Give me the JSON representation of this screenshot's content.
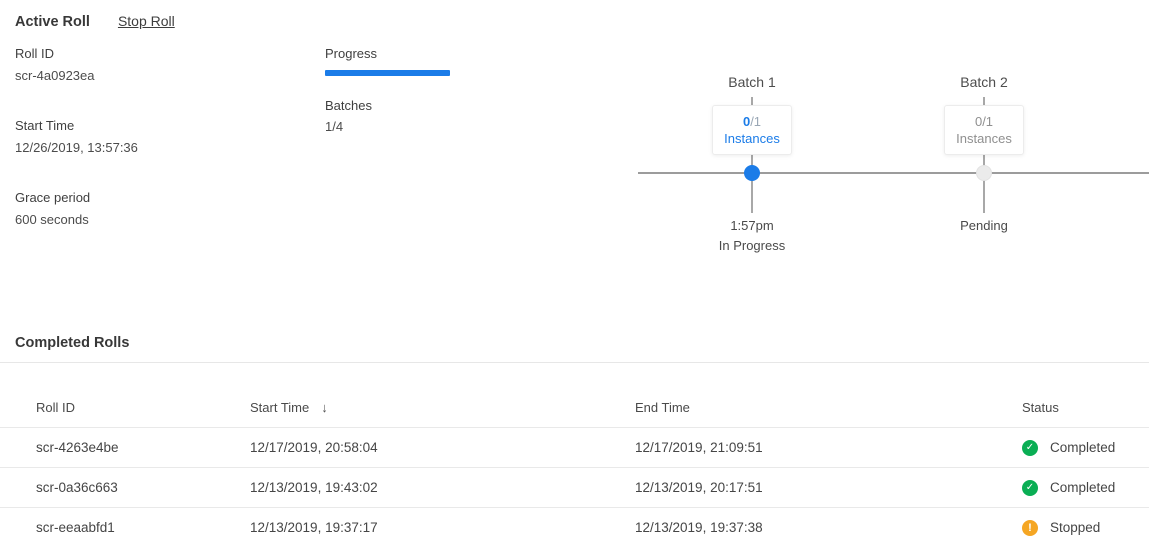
{
  "colors": {
    "accent_blue": "#1b7ce8",
    "success_green": "#0aae54",
    "warning_orange": "#f5a623",
    "line_gray": "#9c9c9c"
  },
  "active_roll": {
    "title": "Active Roll",
    "stop_roll_label": "Stop Roll",
    "details": [
      {
        "label": "Roll ID",
        "value": "scr-4a0923ea"
      },
      {
        "label": "Start Time",
        "value": "12/26/2019, 13:57:36"
      },
      {
        "label": "Grace period",
        "value": "600 seconds"
      }
    ],
    "progress_label": "Progress",
    "progress_percent": 25,
    "batches_label": "Batches",
    "batches_value": "1/4"
  },
  "timeline": {
    "batches": [
      {
        "name": "Batch 1",
        "instances_done": "0",
        "instances_total": "/1",
        "instances_label": "Instances",
        "time": "1:57pm",
        "status": "In Progress",
        "state": "in-progress"
      },
      {
        "name": "Batch 2",
        "instances_done": "0",
        "instances_total": "/1",
        "instances_label": "Instances",
        "time": "Pending",
        "status": "",
        "state": "pending"
      }
    ]
  },
  "completed_rolls": {
    "title": "Completed Rolls",
    "columns": {
      "roll_id": "Roll ID",
      "start_time": "Start Time",
      "end_time": "End Time",
      "status": "Status"
    },
    "sort_icon": "↓",
    "status_icons": {
      "completed": "✓",
      "stopped": "!"
    },
    "rows": [
      {
        "roll_id": "scr-4263e4be",
        "start_time": "12/17/2019, 20:58:04",
        "end_time": "12/17/2019, 21:09:51",
        "status": "Completed",
        "status_type": "completed"
      },
      {
        "roll_id": "scr-0a36c663",
        "start_time": "12/13/2019, 19:43:02",
        "end_time": "12/13/2019, 20:17:51",
        "status": "Completed",
        "status_type": "completed"
      },
      {
        "roll_id": "scr-eeaabfd1",
        "start_time": "12/13/2019, 19:37:17",
        "end_time": "12/13/2019, 19:37:38",
        "status": "Stopped",
        "status_type": "stopped"
      }
    ]
  }
}
